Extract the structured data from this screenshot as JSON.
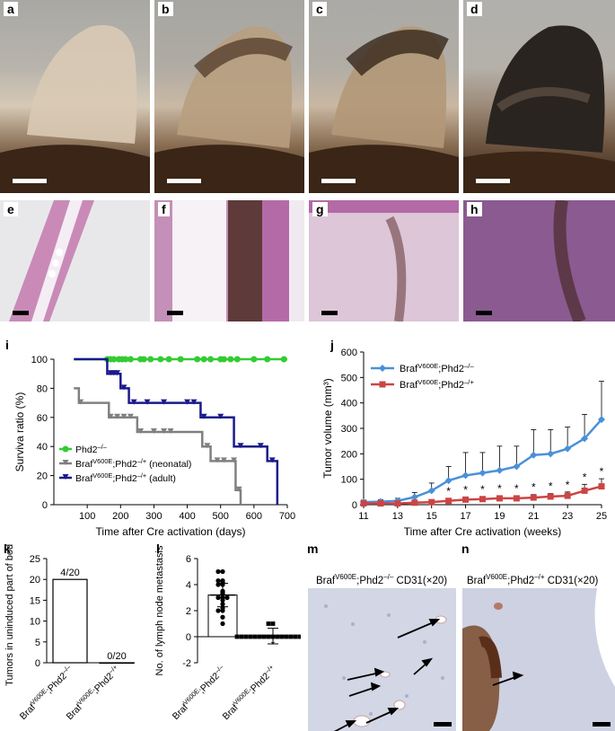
{
  "labels": {
    "a": "a",
    "b": "b",
    "c": "c",
    "d": "d",
    "e": "e",
    "f": "f",
    "g": "g",
    "h": "h",
    "i": "i",
    "j": "j",
    "k": "k",
    "l": "l",
    "m": "m",
    "n": "n"
  },
  "panel_m_caption": {
    "prefix": "Braf",
    "sup": "V600E",
    "mid": ";Phd2",
    "sup2": "–/–",
    "suffix": " CD31(×20)"
  },
  "panel_n_caption": {
    "prefix": "Braf",
    "sup": "V600E",
    "mid": ";Phd2",
    "sup2": "–/+",
    "suffix": " CD31(×20)"
  },
  "colors": {
    "green": "#33cc33",
    "gray": "#808080",
    "navy": "#1a1a8c",
    "blue": "#4a90d9",
    "red": "#cc4444"
  },
  "chart_data": [
    {
      "id": "i",
      "type": "line",
      "xlabel": "Time after Cre activation (days)",
      "ylabel": "Surviva ratio (%)",
      "xlim": [
        0,
        700
      ],
      "ylim": [
        0,
        100
      ],
      "xticks": [
        100,
        200,
        300,
        400,
        500,
        600,
        700
      ],
      "yticks": [
        0,
        20,
        40,
        60,
        80,
        100
      ],
      "legend": "bottom-left",
      "series": [
        {
          "name": "Phd2–/–",
          "legend_parts": [
            "Phd2",
            "–/–",
            ""
          ],
          "color": "#33cc33",
          "step": true,
          "x": [
            60,
            160,
            250,
            700
          ],
          "y": [
            100,
            100,
            100,
            100
          ],
          "censor_x": [
            160,
            170,
            180,
            195,
            205,
            215,
            230,
            260,
            270,
            290,
            320,
            345,
            380,
            430,
            450,
            470,
            500,
            510,
            530,
            550,
            600,
            640,
            690
          ]
        },
        {
          "name": "BrafV600E;Phd2–/+ (neonatal)",
          "legend_parts": [
            "Braf",
            "V600E",
            ";Phd2",
            "–/+",
            " (neonatal)"
          ],
          "color": "#808080",
          "step": true,
          "x": [
            60,
            75,
            165,
            250,
            445,
            470,
            545,
            560
          ],
          "y": [
            80,
            70,
            60,
            50,
            40,
            30,
            10,
            0
          ],
          "censor_x": [
            80,
            170,
            190,
            210,
            230,
            260,
            300,
            330,
            350,
            460,
            490,
            510,
            540,
            555
          ]
        },
        {
          "name": "BrafV600E;Phd2–/+ (adult)",
          "legend_parts": [
            "Braf",
            "V600E",
            ";Phd2",
            "–/+",
            " (adult)"
          ],
          "color": "#1a1a8c",
          "step": true,
          "x": [
            60,
            160,
            200,
            225,
            440,
            540,
            640,
            670
          ],
          "y": [
            100,
            90,
            80,
            70,
            60,
            40,
            30,
            0
          ],
          "censor_x": [
            170,
            180,
            190,
            210,
            240,
            280,
            330,
            400,
            420,
            450,
            500,
            560,
            620,
            655
          ]
        }
      ]
    },
    {
      "id": "j",
      "type": "line",
      "xlabel": "Time after Cre activation (weeks)",
      "ylabel": "Tumor volume (mm³)",
      "xlim": [
        11,
        25
      ],
      "ylim": [
        0,
        600
      ],
      "xticks": [
        11,
        13,
        15,
        17,
        19,
        21,
        23,
        25
      ],
      "yticks": [
        0,
        100,
        200,
        300,
        400,
        500,
        600
      ],
      "legend": "top-left",
      "series": [
        {
          "name": "BrafV600E;Phd2–/–",
          "legend_parts": [
            "Braf",
            "V600E",
            ";Phd2",
            "–/–",
            ""
          ],
          "color": "#4a90d9",
          "marker": "diamond",
          "x": [
            11,
            12,
            13,
            14,
            15,
            16,
            17,
            18,
            19,
            20,
            21,
            22,
            23,
            24,
            25
          ],
          "y": [
            10,
            12,
            15,
            30,
            55,
            95,
            115,
            125,
            135,
            150,
            195,
            200,
            220,
            260,
            335
          ],
          "err": [
            8,
            8,
            10,
            18,
            30,
            55,
            90,
            80,
            95,
            80,
            100,
            95,
            85,
            95,
            150
          ]
        },
        {
          "name": "BrafV600E;Phd2–/+",
          "legend_parts": [
            "Braf",
            "V600E",
            ";Phd2",
            "–/+",
            ""
          ],
          "color": "#cc4444",
          "marker": "square",
          "x": [
            11,
            12,
            13,
            14,
            15,
            16,
            17,
            18,
            19,
            20,
            21,
            22,
            23,
            24,
            25
          ],
          "y": [
            5,
            5,
            5,
            8,
            10,
            15,
            20,
            22,
            25,
            25,
            28,
            32,
            35,
            55,
            72
          ],
          "err": [
            4,
            4,
            4,
            5,
            8,
            10,
            10,
            10,
            10,
            10,
            12,
            12,
            15,
            25,
            30
          ]
        }
      ],
      "annotations": {
        "star": "*",
        "star_x": [
          16,
          17,
          18,
          19,
          20,
          21,
          22,
          23,
          24,
          25
        ]
      }
    },
    {
      "id": "k",
      "type": "bar",
      "ylabel": "Tumors in uninduced part of body (%)",
      "ylim": [
        0,
        25
      ],
      "yticks": [
        0,
        5,
        10,
        15,
        20,
        25
      ],
      "categories": [
        "BrafV600E;Phd2–/–",
        "BrafV600E;Phd2–/+"
      ],
      "category_parts": [
        [
          "Braf",
          "V600E",
          ";Phd2",
          "–/–"
        ],
        [
          "Braf",
          "V600E",
          ";Phd2",
          "–/+"
        ]
      ],
      "values": [
        20,
        0
      ],
      "data_labels": [
        "4/20",
        "0/20"
      ]
    },
    {
      "id": "l",
      "type": "scatter",
      "ylabel": "No. of lymph node metastasis",
      "ylim": [
        -2,
        6
      ],
      "yticks": [
        -2,
        0,
        2,
        4,
        6
      ],
      "categories": [
        "BrafV600E;Phd2–/–",
        "BrafV600E;Phd2–/+"
      ],
      "category_parts": [
        [
          "Braf",
          "V600E",
          ";Phd2",
          "–/–"
        ],
        [
          "Braf",
          "V600E",
          ";Phd2",
          "–/+"
        ]
      ],
      "means": [
        3.2,
        0.05
      ],
      "sd": [
        0.9,
        0.6
      ],
      "points": [
        [
          5,
          5,
          4.3,
          4.3,
          4.2,
          4,
          4,
          3.5,
          3.4,
          3.3,
          3,
          3,
          3,
          2.8,
          2.5,
          2.2,
          2,
          2,
          1.5,
          1
        ],
        [
          0,
          0,
          0,
          0,
          0,
          0,
          0,
          0,
          0,
          0,
          0,
          0,
          0,
          0,
          0,
          0,
          0,
          1,
          1
        ]
      ],
      "annotations": {
        "star": "*"
      }
    }
  ]
}
